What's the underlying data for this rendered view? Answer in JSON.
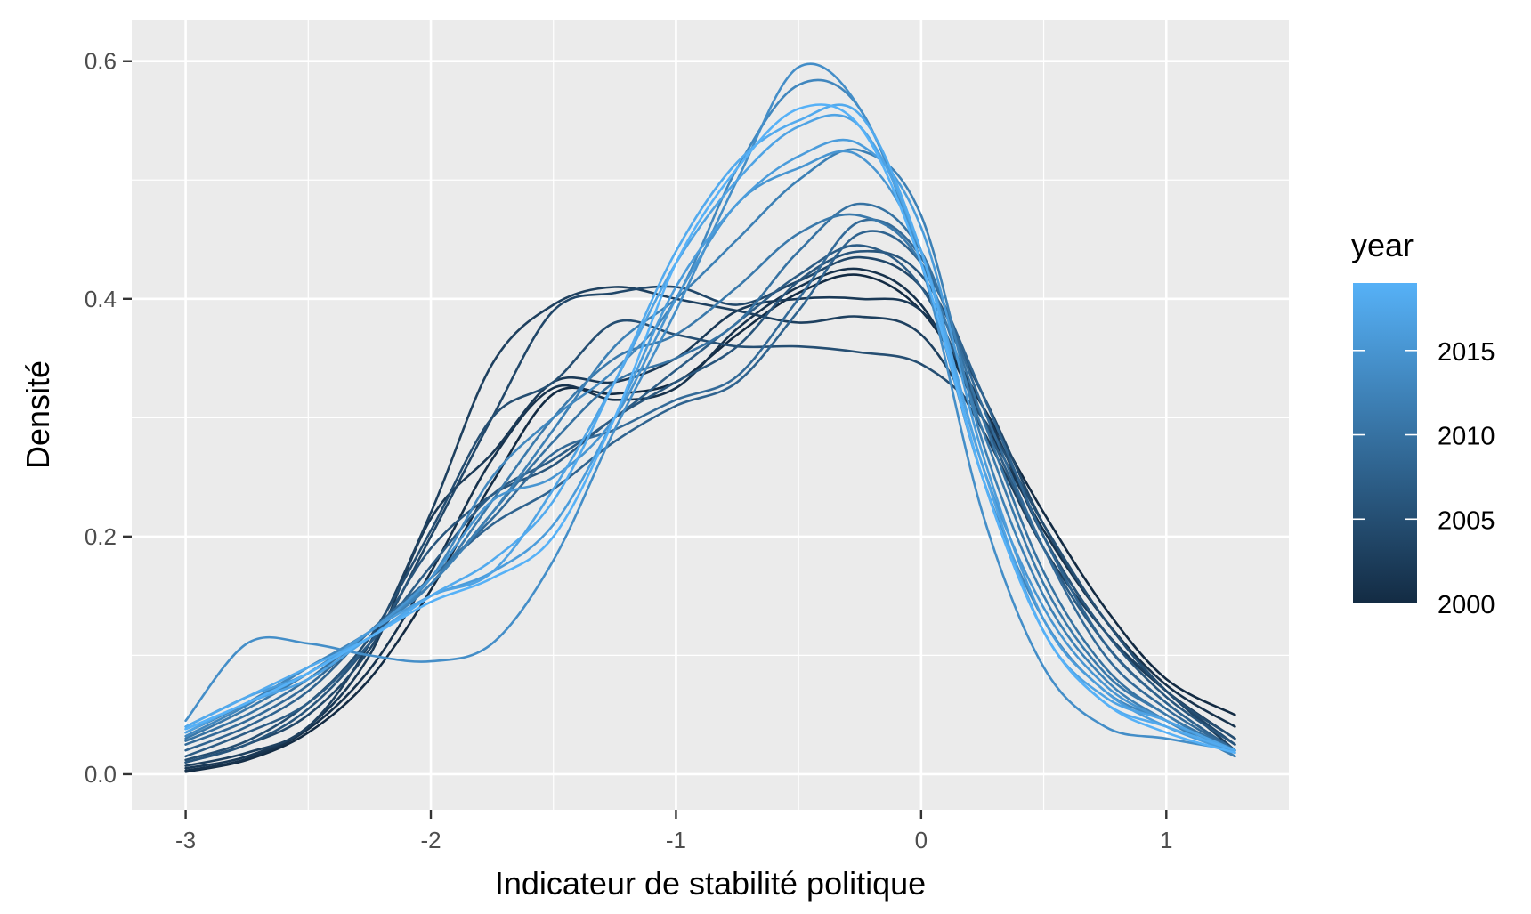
{
  "chart_data": {
    "type": "line",
    "title": "",
    "xlabel": "Indicateur de stabilité politique",
    "ylabel": "Densité",
    "xlim": [
      -3.22,
      1.5
    ],
    "ylim": [
      -0.03,
      0.635
    ],
    "x_ticks": [
      {
        "value": -3,
        "label": "-3"
      },
      {
        "value": -2,
        "label": "-2"
      },
      {
        "value": -1,
        "label": "-1"
      },
      {
        "value": 0,
        "label": "0"
      },
      {
        "value": 1,
        "label": "1"
      }
    ],
    "y_ticks": [
      {
        "value": 0.0,
        "label": "0.0"
      },
      {
        "value": 0.2,
        "label": "0.2"
      },
      {
        "value": 0.4,
        "label": "0.4"
      },
      {
        "value": 0.6,
        "label": "0.6"
      }
    ],
    "grid": true,
    "background": "#ebebeb",
    "legend": {
      "title": "year",
      "position": "right",
      "type": "colorbar",
      "range": [
        2000,
        2019
      ],
      "low_color": "#132b43",
      "high_color": "#56b1f7",
      "breaks": [
        {
          "value": 2000,
          "label": "2000"
        },
        {
          "value": 2005,
          "label": "2005"
        },
        {
          "value": 2010,
          "label": "2010"
        },
        {
          "value": 2015,
          "label": "2015"
        }
      ]
    },
    "x": [
      -3.0,
      -2.75,
      -2.5,
      -2.25,
      -2.0,
      -1.75,
      -1.5,
      -1.25,
      -1.0,
      -0.75,
      -0.5,
      -0.25,
      0.0,
      0.25,
      0.5,
      0.75,
      1.0,
      1.28
    ],
    "series": [
      {
        "year": 2000,
        "values": [
          0.002,
          0.012,
          0.035,
          0.08,
          0.155,
          0.245,
          0.32,
          0.32,
          0.33,
          0.37,
          0.405,
          0.42,
          0.39,
          0.31,
          0.22,
          0.14,
          0.08,
          0.05
        ]
      },
      {
        "year": 2001,
        "values": [
          0.003,
          0.013,
          0.038,
          0.088,
          0.17,
          0.265,
          0.325,
          0.315,
          0.325,
          0.375,
          0.41,
          0.425,
          0.395,
          0.3,
          0.205,
          0.13,
          0.075,
          0.04
        ]
      },
      {
        "year": 2002,
        "values": [
          0.005,
          0.015,
          0.04,
          0.1,
          0.215,
          0.27,
          0.33,
          0.33,
          0.35,
          0.39,
          0.4,
          0.4,
          0.39,
          0.31,
          0.2,
          0.12,
          0.07,
          0.03
        ]
      },
      {
        "year": 2003,
        "values": [
          0.007,
          0.018,
          0.04,
          0.11,
          0.22,
          0.345,
          0.395,
          0.41,
          0.4,
          0.39,
          0.38,
          0.385,
          0.37,
          0.29,
          0.19,
          0.12,
          0.07,
          0.02
        ]
      },
      {
        "year": 2004,
        "values": [
          0.01,
          0.025,
          0.05,
          0.105,
          0.2,
          0.3,
          0.39,
          0.405,
          0.41,
          0.395,
          0.415,
          0.435,
          0.41,
          0.32,
          0.21,
          0.13,
          0.07,
          0.025
        ]
      },
      {
        "year": 2005,
        "values": [
          0.012,
          0.028,
          0.06,
          0.115,
          0.205,
          0.3,
          0.33,
          0.38,
          0.37,
          0.36,
          0.36,
          0.355,
          0.345,
          0.3,
          0.21,
          0.13,
          0.07,
          0.03
        ]
      },
      {
        "year": 2006,
        "values": [
          0.01,
          0.025,
          0.055,
          0.11,
          0.19,
          0.235,
          0.26,
          0.3,
          0.33,
          0.36,
          0.415,
          0.44,
          0.42,
          0.32,
          0.2,
          0.12,
          0.065,
          0.025
        ]
      },
      {
        "year": 2007,
        "values": [
          0.015,
          0.035,
          0.06,
          0.11,
          0.175,
          0.235,
          0.265,
          0.3,
          0.34,
          0.38,
          0.42,
          0.445,
          0.41,
          0.3,
          0.19,
          0.11,
          0.06,
          0.02
        ]
      },
      {
        "year": 2008,
        "values": [
          0.02,
          0.04,
          0.07,
          0.12,
          0.165,
          0.21,
          0.24,
          0.28,
          0.31,
          0.33,
          0.39,
          0.455,
          0.43,
          0.32,
          0.2,
          0.11,
          0.06,
          0.02
        ]
      },
      {
        "year": 2009,
        "values": [
          0.025,
          0.045,
          0.075,
          0.12,
          0.165,
          0.215,
          0.27,
          0.29,
          0.315,
          0.335,
          0.4,
          0.465,
          0.435,
          0.31,
          0.19,
          0.1,
          0.055,
          0.02
        ]
      },
      {
        "year": 2010,
        "values": [
          0.028,
          0.05,
          0.08,
          0.12,
          0.16,
          0.22,
          0.28,
          0.33,
          0.35,
          0.38,
          0.44,
          0.48,
          0.44,
          0.3,
          0.17,
          0.09,
          0.05,
          0.02
        ]
      },
      {
        "year": 2011,
        "values": [
          0.03,
          0.055,
          0.085,
          0.12,
          0.16,
          0.23,
          0.3,
          0.35,
          0.37,
          0.41,
          0.455,
          0.47,
          0.43,
          0.29,
          0.16,
          0.085,
          0.05,
          0.015
        ]
      },
      {
        "year": 2012,
        "values": [
          0.035,
          0.06,
          0.09,
          0.12,
          0.16,
          0.22,
          0.29,
          0.36,
          0.4,
          0.45,
          0.5,
          0.525,
          0.47,
          0.28,
          0.15,
          0.08,
          0.045,
          0.015
        ]
      },
      {
        "year": 2013,
        "values": [
          0.032,
          0.058,
          0.09,
          0.12,
          0.165,
          0.25,
          0.3,
          0.34,
          0.4,
          0.51,
          0.58,
          0.56,
          0.43,
          0.25,
          0.13,
          0.07,
          0.045,
          0.02
        ]
      },
      {
        "year": 2014,
        "values": [
          0.045,
          0.11,
          0.11,
          0.1,
          0.095,
          0.11,
          0.18,
          0.29,
          0.39,
          0.5,
          0.595,
          0.56,
          0.43,
          0.22,
          0.09,
          0.04,
          0.03,
          0.02
        ]
      },
      {
        "year": 2015,
        "values": [
          0.038,
          0.06,
          0.085,
          0.12,
          0.165,
          0.23,
          0.25,
          0.3,
          0.4,
          0.48,
          0.51,
          0.52,
          0.44,
          0.26,
          0.14,
          0.075,
          0.045,
          0.02
        ]
      },
      {
        "year": 2016,
        "values": [
          0.04,
          0.065,
          0.085,
          0.12,
          0.15,
          0.17,
          0.21,
          0.3,
          0.41,
          0.48,
          0.52,
          0.53,
          0.46,
          0.27,
          0.13,
          0.07,
          0.04,
          0.018
        ]
      },
      {
        "year": 2017,
        "values": [
          0.035,
          0.06,
          0.08,
          0.115,
          0.15,
          0.17,
          0.24,
          0.33,
          0.43,
          0.5,
          0.545,
          0.545,
          0.44,
          0.26,
          0.12,
          0.065,
          0.045,
          0.02
        ]
      },
      {
        "year": 2018,
        "values": [
          0.04,
          0.065,
          0.09,
          0.115,
          0.15,
          0.18,
          0.23,
          0.33,
          0.44,
          0.515,
          0.55,
          0.555,
          0.44,
          0.25,
          0.12,
          0.06,
          0.04,
          0.02
        ]
      },
      {
        "year": 2019,
        "values": [
          0.038,
          0.06,
          0.085,
          0.115,
          0.145,
          0.165,
          0.2,
          0.3,
          0.43,
          0.51,
          0.56,
          0.545,
          0.43,
          0.25,
          0.12,
          0.06,
          0.035,
          0.018
        ]
      }
    ]
  }
}
